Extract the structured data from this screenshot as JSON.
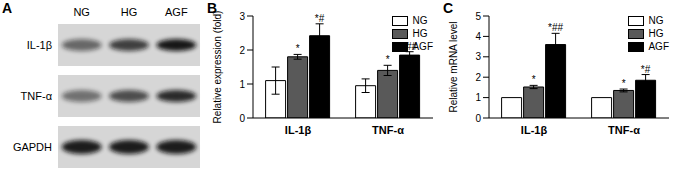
{
  "blot": {
    "panel": "A",
    "lanes": [
      "NG",
      "HG",
      "AGF"
    ],
    "rows": [
      "IL-1β",
      "TNF-α",
      "GAPDH"
    ]
  },
  "chart_data": [
    {
      "panel": "B",
      "type": "bar",
      "y_label": "Relative expression (fold)",
      "categories": [
        "IL-1β",
        "TNF-α"
      ],
      "ylim": [
        0,
        3
      ],
      "yticks": [
        0,
        1,
        2,
        3
      ],
      "legend": "upper right",
      "series": [
        {
          "name": "NG",
          "color": "#ffffff",
          "values": [
            1.1,
            0.95
          ],
          "errors": [
            0.4,
            0.2
          ]
        },
        {
          "name": "HG",
          "color": "#595959",
          "values": [
            1.8,
            1.4
          ],
          "errors": [
            0.07,
            0.15
          ],
          "annotations": [
            "*",
            "*"
          ]
        },
        {
          "name": "AGF",
          "color": "#000000",
          "values": [
            2.42,
            1.85
          ],
          "errors": [
            0.35,
            0.1
          ],
          "annotations": [
            "*#",
            "*##"
          ]
        }
      ]
    },
    {
      "panel": "C",
      "type": "bar",
      "y_label": "Relative mRNA level",
      "categories": [
        "IL-1β",
        "TNF-α"
      ],
      "ylim": [
        0,
        5
      ],
      "yticks": [
        0,
        1,
        2,
        3,
        4,
        5
      ],
      "legend": "upper right",
      "series": [
        {
          "name": "NG",
          "color": "#ffffff",
          "values": [
            1.0,
            1.0
          ]
        },
        {
          "name": "HG",
          "color": "#595959",
          "values": [
            1.52,
            1.35
          ],
          "errors": [
            0.08,
            0.07
          ],
          "annotations": [
            "*",
            "*"
          ]
        },
        {
          "name": "AGF",
          "color": "#000000",
          "values": [
            3.6,
            1.85
          ],
          "errors": [
            0.55,
            0.28
          ],
          "annotations": [
            "*##",
            "*#"
          ]
        }
      ]
    }
  ]
}
